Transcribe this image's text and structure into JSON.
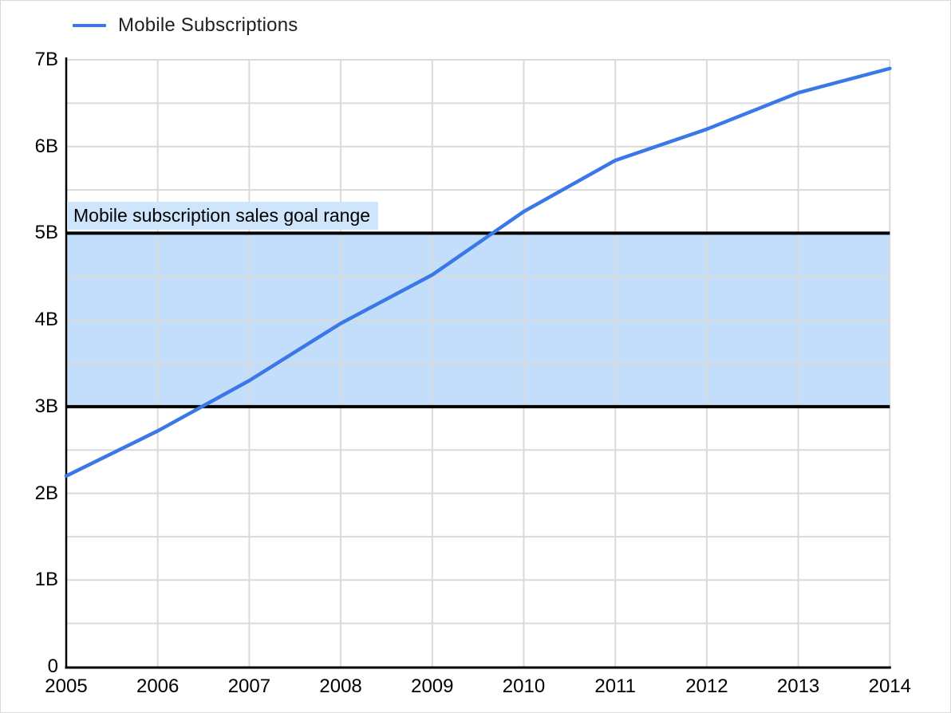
{
  "chart_data": {
    "type": "line",
    "unit": "billions",
    "x": [
      2005,
      2006,
      2007,
      2008,
      2009,
      2010,
      2011,
      2012,
      2013,
      2014
    ],
    "series": [
      {
        "name": "Mobile Subscriptions",
        "color": "#3b78e7",
        "values": [
          2.2,
          2.72,
          3.3,
          3.96,
          4.52,
          5.25,
          5.84,
          6.2,
          6.62,
          6.9
        ]
      }
    ],
    "title": "",
    "xlabel": "",
    "ylabel": "",
    "ylim": [
      0,
      7
    ],
    "y_major_step": 1,
    "y_minor_step": 0.5,
    "y_tick_labels": [
      "0",
      "1B",
      "2B",
      "3B",
      "4B",
      "5B",
      "6B",
      "7B"
    ],
    "x_tick_labels": [
      "2005",
      "2006",
      "2007",
      "2008",
      "2009",
      "2010",
      "2011",
      "2012",
      "2013",
      "2014"
    ],
    "grid": true,
    "legend_position": "top-left",
    "annotation_band": {
      "from": 3,
      "to": 5,
      "label": "Mobile subscription sales goal range",
      "fill": "#c2defa",
      "label_fill": "#cfe5fb",
      "line_color": "#000000",
      "line_width": 4
    }
  },
  "colors": {
    "background": "#ffffff",
    "gridline": "#dadada",
    "axis": "#000000",
    "tick_text": "#000000",
    "legend_text": "#1f1f1f"
  }
}
